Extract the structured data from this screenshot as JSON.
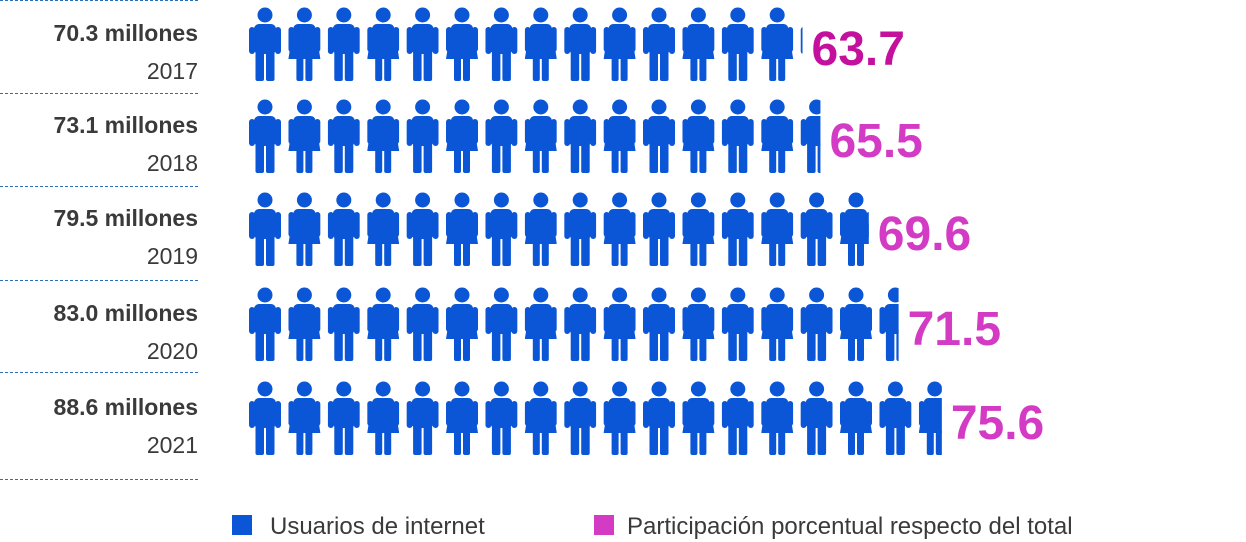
{
  "colors": {
    "users": "#0a56d6",
    "share": "#d33bc4",
    "share_first": "#c3119e",
    "text": "#3a3a3a",
    "separator": "#2a6fb8"
  },
  "icons": {
    "male": "man-figure-icon",
    "female": "woman-figure-icon"
  },
  "chart_data": {
    "type": "pictograph",
    "rows": [
      {
        "year": "2017",
        "users_label": "70.3 millones",
        "users": 70.3,
        "share_label": "63.7",
        "share": 63.7
      },
      {
        "year": "2018",
        "users_label": "73.1 millones",
        "users": 73.1,
        "share_label": "65.5",
        "share": 65.5
      },
      {
        "year": "2019",
        "users_label": "79.5 millones",
        "users": 79.5,
        "share_label": "69.6",
        "share": 69.6
      },
      {
        "year": "2020",
        "users_label": "83.0 millones",
        "users": 83.0,
        "share_label": "71.5",
        "share": 71.5
      },
      {
        "year": "2021",
        "users_label": "88.6 millones",
        "users": 88.6,
        "share_label": "75.6",
        "share": 75.6
      }
    ],
    "legend": [
      {
        "label": "Usuarios de internet",
        "color": "#0a56d6"
      },
      {
        "label": "Participación porcentual respecto del total",
        "color": "#d33bc4"
      }
    ]
  }
}
